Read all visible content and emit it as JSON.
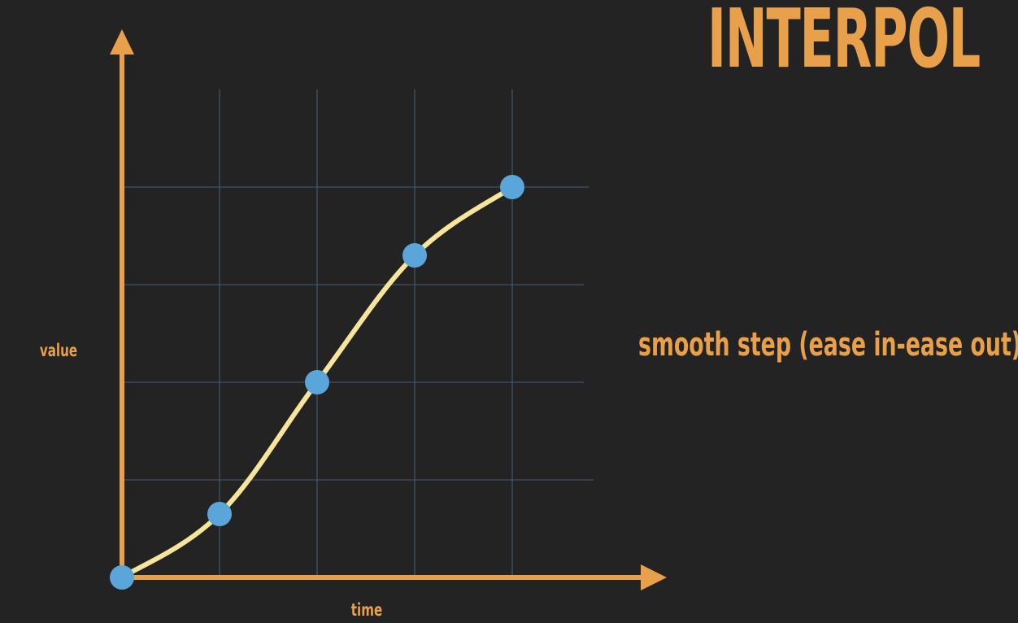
{
  "slide": {
    "title": "INTERPOL",
    "subtitle": "smooth step (ease in-ease out)"
  },
  "colors": {
    "background": "#232323",
    "axis": "#e8a04a",
    "grid": "#3b5666",
    "curve": "#f6e59b",
    "points": "#5aa6db",
    "text": "#e8a04a"
  },
  "chart_data": {
    "type": "line",
    "title": "",
    "xlabel": "time",
    "ylabel": "value",
    "xlim": [
      0,
      5
    ],
    "ylim": [
      0,
      5
    ],
    "grid": true,
    "curve": "smoothstep",
    "series": [
      {
        "x": [
          0,
          1,
          2,
          3,
          4
        ],
        "y": [
          0,
          0.65,
          2.0,
          3.3,
          4.0
        ]
      }
    ]
  }
}
